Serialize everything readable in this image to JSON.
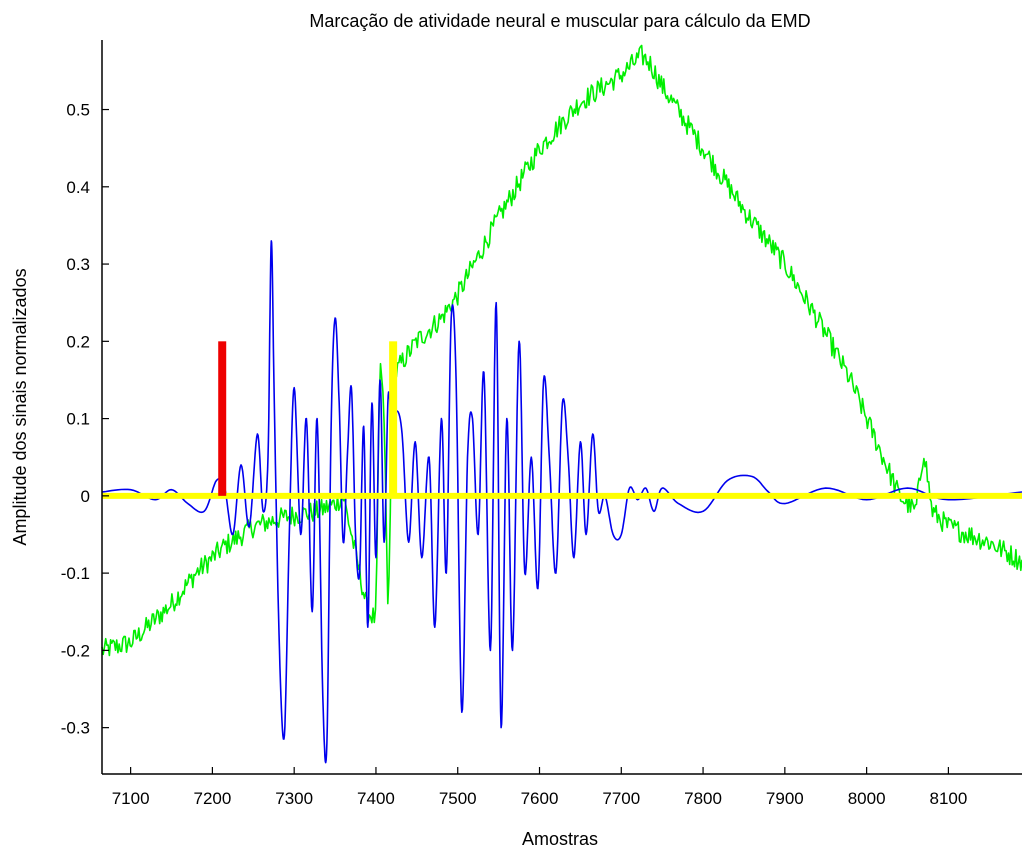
{
  "chart_data": {
    "type": "line",
    "title": "Marcação de atividade neural e muscular para cálculo da EMD",
    "xlabel": "Amostras",
    "ylabel": "Amplitude dos sinais normalizados",
    "xlim": [
      7065,
      8190
    ],
    "ylim": [
      -0.36,
      0.59
    ],
    "xticks": [
      7100,
      7200,
      7300,
      7400,
      7500,
      7600,
      7700,
      7800,
      7900,
      8000,
      8100
    ],
    "yticks": [
      -0.3,
      -0.2,
      -0.1,
      0,
      0.1,
      0.2,
      0.3,
      0.4,
      0.5
    ],
    "xtick_labels": [
      "7100",
      "7200",
      "7300",
      "7400",
      "7500",
      "7600",
      "7700",
      "7800",
      "7900",
      "8000",
      "8100"
    ],
    "ytick_labels": [
      "-0.3",
      "-0.2",
      "-0.1",
      "0",
      "0.1",
      "0.2",
      "0.3",
      "0.4",
      "0.5"
    ],
    "grid": false,
    "series": [
      {
        "color": "#00ee00",
        "x": [
          7065,
          7100,
          7120,
          7150,
          7180,
          7200,
          7215,
          7230,
          7250,
          7280,
          7300,
          7330,
          7350,
          7360,
          7370,
          7380,
          7390,
          7400,
          7405,
          7410,
          7415,
          7420,
          7430,
          7450,
          7480,
          7500,
          7550,
          7600,
          7650,
          7700,
          7725,
          7735,
          7750,
          7800,
          7850,
          7900,
          7950,
          7980,
          8000,
          8020,
          8040,
          8060,
          8070,
          8080,
          8100,
          8150,
          8190
        ],
        "y": [
          -0.2,
          -0.19,
          -0.17,
          -0.14,
          -0.1,
          -0.08,
          -0.065,
          -0.055,
          -0.04,
          -0.03,
          -0.025,
          -0.02,
          -0.01,
          0.0,
          -0.05,
          -0.1,
          -0.15,
          -0.16,
          0.18,
          0.1,
          -0.17,
          0.15,
          0.17,
          0.2,
          0.23,
          0.26,
          0.36,
          0.45,
          0.51,
          0.545,
          0.57,
          0.56,
          0.53,
          0.45,
          0.37,
          0.3,
          0.21,
          0.15,
          0.1,
          0.05,
          0.0,
          -0.02,
          0.06,
          -0.02,
          -0.04,
          -0.06,
          -0.085
        ]
      },
      {
        "color": "#0000ee",
        "x": [
          7065,
          7100,
          7130,
          7150,
          7170,
          7190,
          7205,
          7215,
          7225,
          7235,
          7245,
          7255,
          7262,
          7268,
          7272,
          7276,
          7282,
          7288,
          7294,
          7300,
          7308,
          7315,
          7322,
          7328,
          7335,
          7340,
          7345,
          7350,
          7355,
          7360,
          7365,
          7370,
          7375,
          7380,
          7385,
          7390,
          7395,
          7400,
          7405,
          7410,
          7415,
          7420,
          7425,
          7432,
          7440,
          7448,
          7456,
          7465,
          7472,
          7480,
          7486,
          7492,
          7498,
          7505,
          7512,
          7518,
          7525,
          7532,
          7540,
          7547,
          7553,
          7560,
          7567,
          7575,
          7582,
          7590,
          7598,
          7605,
          7612,
          7620,
          7628,
          7635,
          7642,
          7650,
          7657,
          7665,
          7672,
          7680,
          7690,
          7700,
          7710,
          7720,
          7730,
          7740,
          7750,
          7770,
          7800,
          7830,
          7860,
          7880,
          7900,
          7950,
          8000,
          8050,
          8100,
          8190
        ],
        "y": [
          0.005,
          0.008,
          -0.005,
          0.008,
          -0.01,
          -0.02,
          0.02,
          0.01,
          -0.05,
          0.04,
          -0.04,
          0.08,
          -0.02,
          0.05,
          0.33,
          0.1,
          -0.2,
          -0.31,
          -0.05,
          0.14,
          -0.05,
          0.1,
          -0.15,
          0.1,
          -0.26,
          -0.32,
          0.08,
          0.23,
          0.12,
          -0.06,
          0.05,
          0.14,
          -0.05,
          -0.1,
          0.09,
          -0.17,
          0.12,
          -0.08,
          0.15,
          -0.06,
          0.13,
          0.08,
          0.11,
          0.08,
          -0.06,
          0.07,
          -0.08,
          0.05,
          -0.17,
          0.1,
          -0.1,
          0.23,
          0.15,
          -0.28,
          0.05,
          0.1,
          -0.05,
          0.16,
          -0.2,
          0.25,
          -0.3,
          0.1,
          -0.2,
          0.2,
          -0.1,
          0.05,
          -0.12,
          0.15,
          0.05,
          -0.1,
          0.12,
          0.05,
          -0.08,
          0.07,
          -0.05,
          0.08,
          -0.02,
          0.0,
          -0.05,
          -0.05,
          0.01,
          -0.005,
          0.01,
          -0.02,
          0.01,
          -0.01,
          -0.02,
          0.02,
          0.025,
          0.005,
          -0.01,
          0.01,
          -0.005,
          0.01,
          -0.005,
          0.005
        ]
      },
      {
        "color": "#ffff00",
        "x": [
          7065,
          8190
        ],
        "y": [
          0,
          0
        ]
      }
    ],
    "markers": [
      {
        "color": "#ee0000",
        "x": 7212,
        "y_from": 0,
        "y_to": 0.2
      },
      {
        "color": "#ffff00",
        "x": 7421,
        "y_from": 0,
        "y_to": 0.2
      }
    ]
  }
}
